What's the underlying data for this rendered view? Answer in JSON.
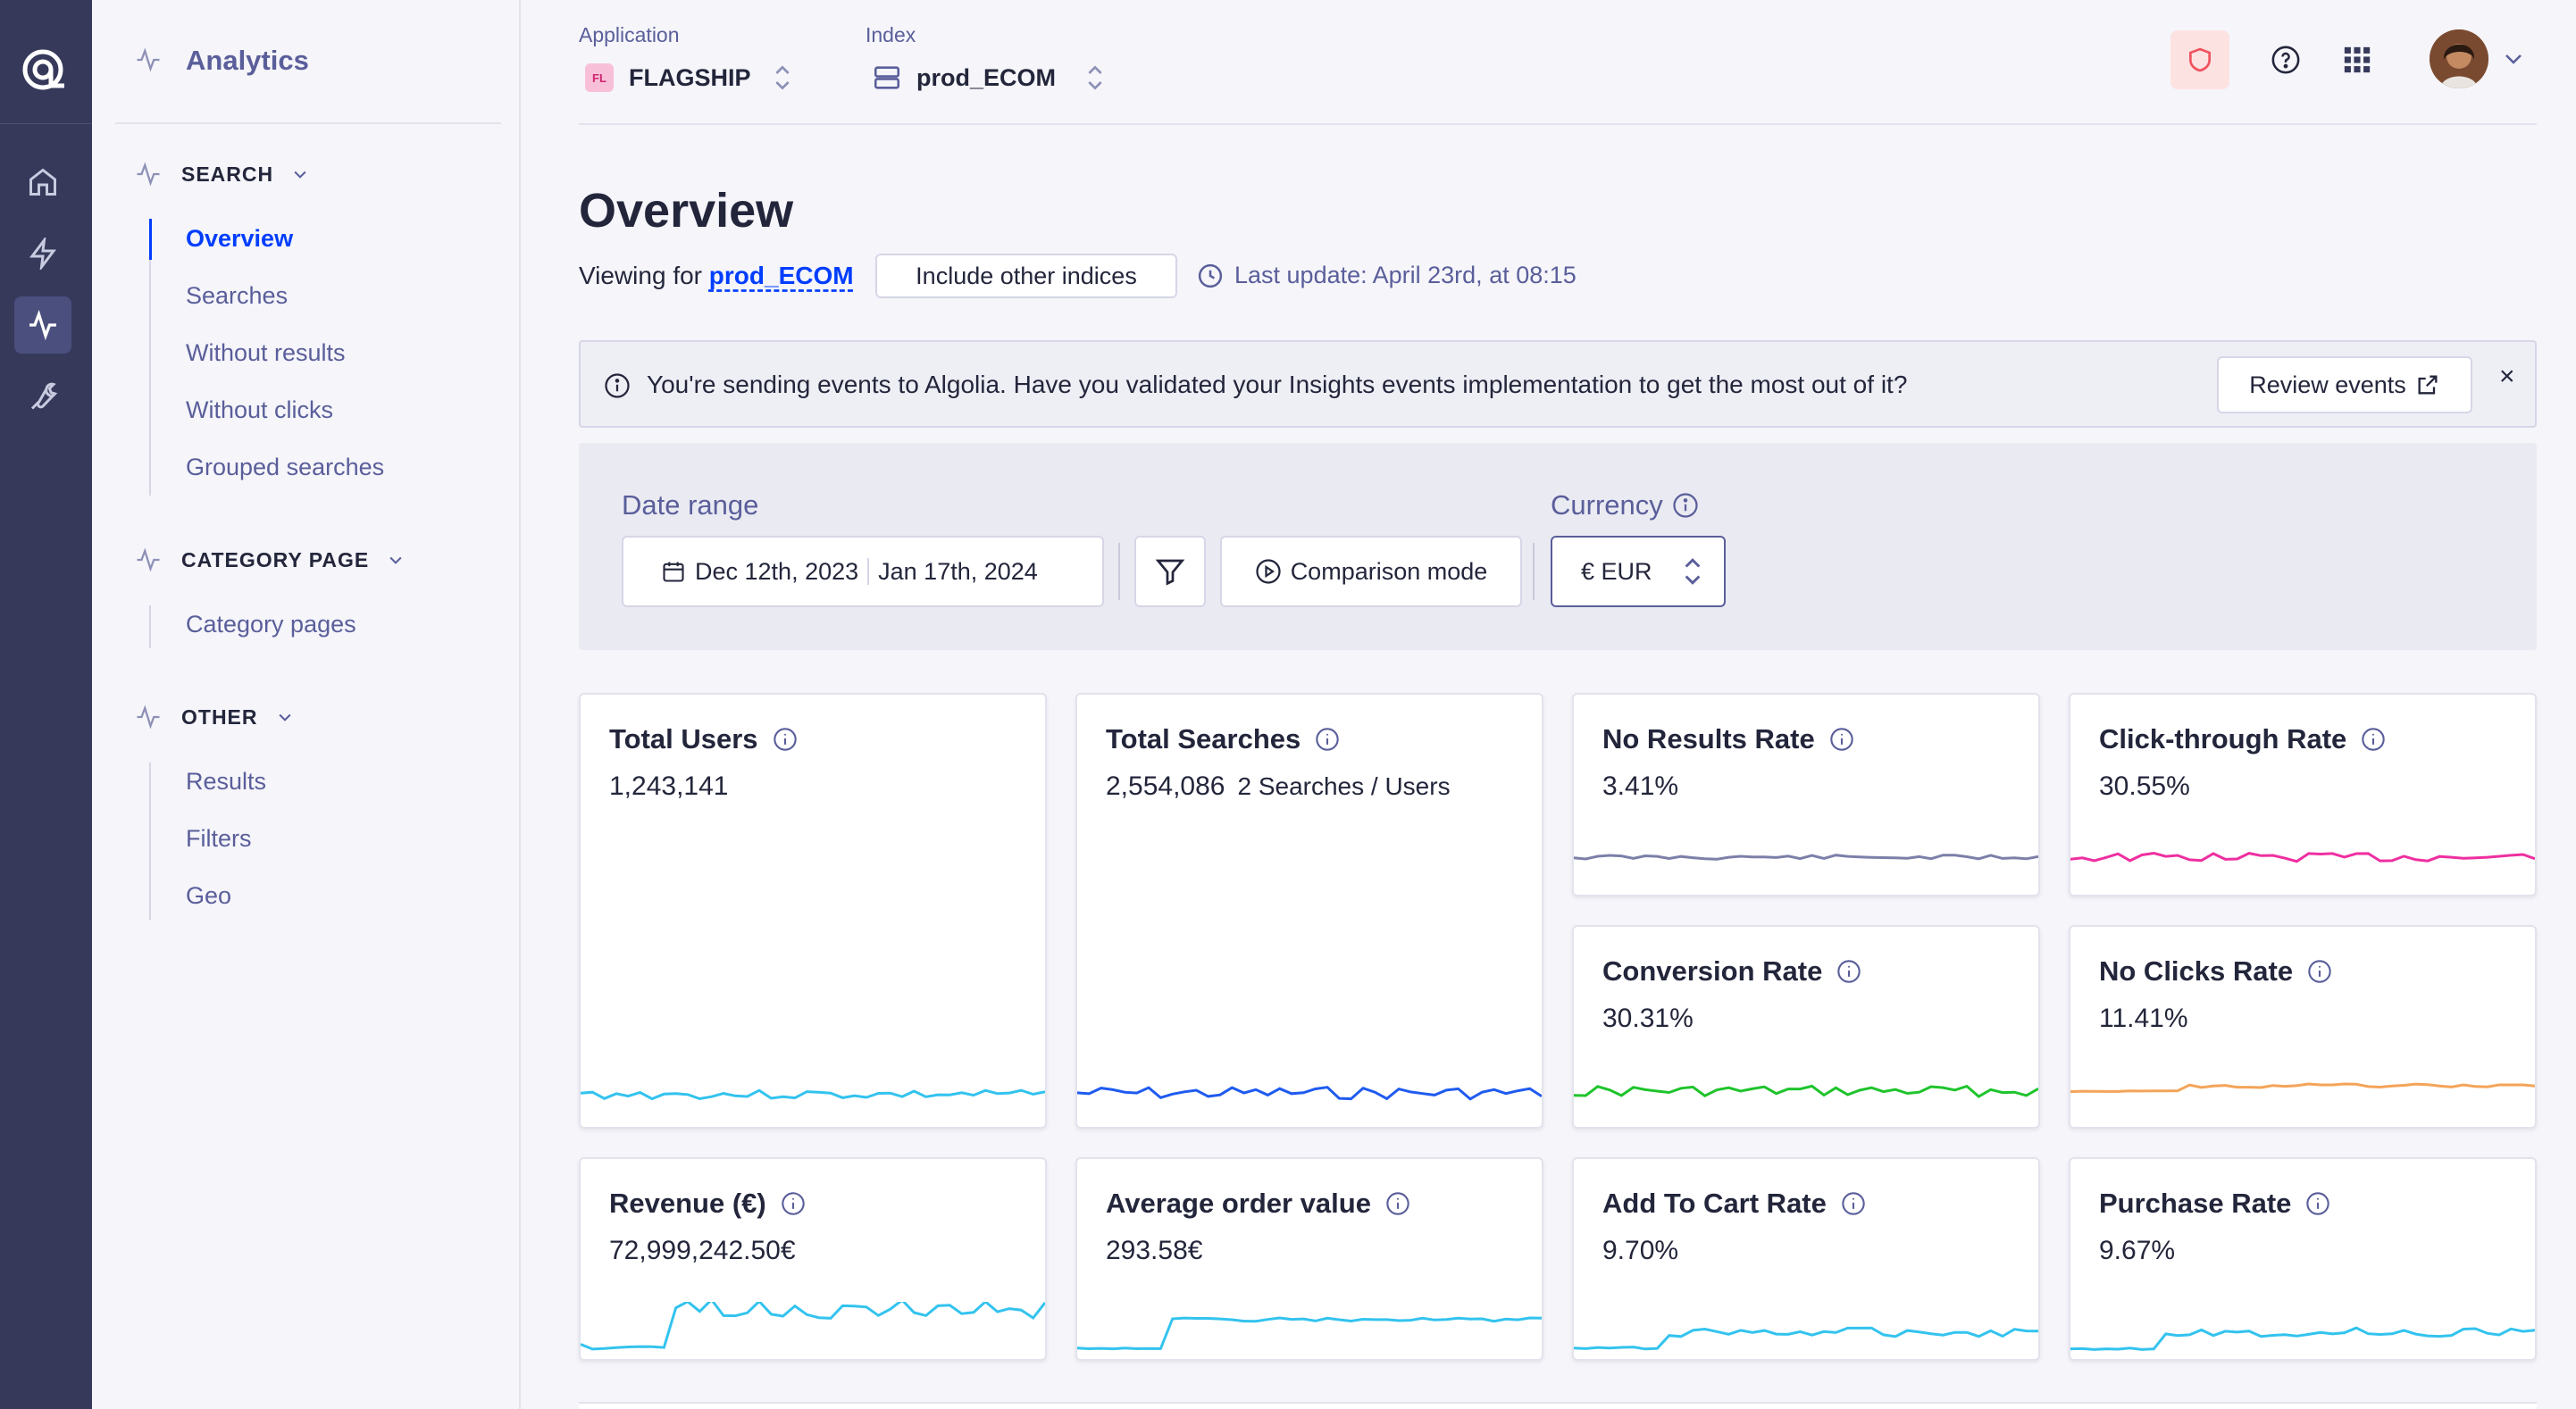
{
  "sidebar": {
    "title": "Analytics",
    "sections": [
      {
        "label": "SEARCH",
        "items": [
          "Overview",
          "Searches",
          "Without results",
          "Without clicks",
          "Grouped searches"
        ]
      },
      {
        "label": "CATEGORY PAGE",
        "items": [
          "Category pages"
        ]
      },
      {
        "label": "OTHER",
        "items": [
          "Results",
          "Filters",
          "Geo"
        ]
      }
    ],
    "active_item": "Overview"
  },
  "header": {
    "application_label": "Application",
    "application_badge": "FL",
    "application_value": "FLAGSHIP",
    "index_label": "Index",
    "index_value": "prod_ECOM"
  },
  "page": {
    "title": "Overview",
    "viewing_prefix": "Viewing for",
    "viewing_index": "prod_ECOM",
    "include_button": "Include other indices",
    "last_update": "Last update: April 23rd, at 08:15"
  },
  "banner": {
    "text": "You're sending events to Algolia. Have you validated your Insights events implementation to get the most out of it?",
    "button": "Review events",
    "close": "×"
  },
  "filters": {
    "date_label": "Date range",
    "date_start": "Dec 12th, 2023",
    "date_end": "Jan 17th, 2024",
    "comparison": "Comparison mode",
    "currency_label": "Currency",
    "currency_value": "€ EUR"
  },
  "metrics": [
    {
      "title": "Total Users",
      "value": "1,243,141",
      "sub": "",
      "color": "#33c3ee"
    },
    {
      "title": "Total Searches",
      "value": "2,554,086",
      "sub": "2 Searches / Users",
      "color": "#1f5bef"
    },
    {
      "title": "No Results Rate",
      "value": "3.41%",
      "sub": "",
      "color": "#7c7fa8"
    },
    {
      "title": "Click-through Rate",
      "value": "30.55%",
      "sub": "",
      "color": "#ee2fa0"
    },
    {
      "title": "Conversion Rate",
      "value": "30.31%",
      "sub": "",
      "color": "#1fc42c"
    },
    {
      "title": "No Clicks Rate",
      "value": "11.41%",
      "sub": "",
      "color": "#f4a459"
    },
    {
      "title": "Revenue (€)",
      "value": "72,999,242.50€",
      "sub": "",
      "color": "#33c3ee"
    },
    {
      "title": "Average order value",
      "value": "293.58€",
      "sub": "",
      "color": "#33c3ee"
    },
    {
      "title": "Add To Cart Rate",
      "value": "9.70%",
      "sub": "",
      "color": "#33c3ee"
    },
    {
      "title": "Purchase Rate",
      "value": "9.67%",
      "sub": "",
      "color": "#33c3ee"
    }
  ]
}
